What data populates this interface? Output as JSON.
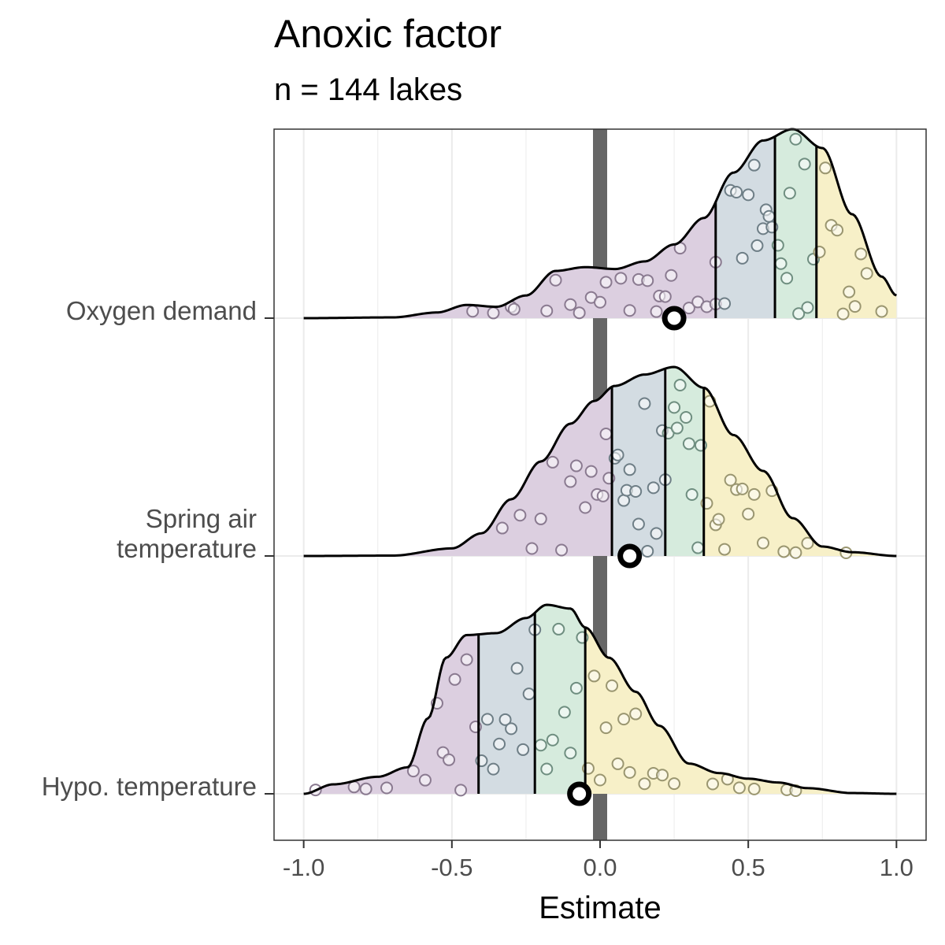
{
  "header": {
    "title": "Anoxic factor",
    "subtitle": "n = 144 lakes"
  },
  "colors": {
    "band_fills": [
      "#dccfe0",
      "#d3dce2",
      "#d6ebdd",
      "#f7f0c8"
    ],
    "point_strokes": [
      "#8a7a90",
      "#6e7e86",
      "#6f8e80",
      "#9a9670"
    ],
    "zero_line": "#666666",
    "grid": "#ebebeb",
    "frame": "#333333"
  },
  "chart_data": {
    "type": "ridgeline",
    "title": "Anoxic factor",
    "subtitle": "n = 144 lakes",
    "xlabel": "Estimate",
    "ylabel": "",
    "xlim": [
      -1.1,
      1.1
    ],
    "x_ticks": [
      -1.0,
      -0.5,
      0.0,
      0.5,
      1.0
    ],
    "x_tick_labels": [
      "-1.0",
      "-0.5",
      "0.0",
      "0.5",
      "1.0"
    ],
    "grid": true,
    "reference_line_x": 0,
    "categories": [
      {
        "label": "Oxygen demand",
        "label_lines": [
          "Oxygen demand"
        ],
        "quantile_lines": [
          0.39,
          0.59,
          0.73
        ],
        "mean": 0.25,
        "density": [
          [
            -1.0,
            0.0
          ],
          [
            -0.7,
            0.004
          ],
          [
            -0.55,
            0.03
          ],
          [
            -0.45,
            0.07
          ],
          [
            -0.35,
            0.06
          ],
          [
            -0.25,
            0.12
          ],
          [
            -0.15,
            0.25
          ],
          [
            -0.05,
            0.27
          ],
          [
            0.05,
            0.26
          ],
          [
            0.15,
            0.3
          ],
          [
            0.25,
            0.39
          ],
          [
            0.35,
            0.53
          ],
          [
            0.45,
            0.77
          ],
          [
            0.55,
            0.94
          ],
          [
            0.65,
            1.0
          ],
          [
            0.75,
            0.9
          ],
          [
            0.85,
            0.55
          ],
          [
            0.95,
            0.22
          ],
          [
            1.0,
            0.12
          ]
        ],
        "points": [
          -0.43,
          -0.36,
          -0.3,
          -0.29,
          -0.18,
          -0.15,
          -0.1,
          -0.07,
          -0.03,
          0.0,
          0.02,
          0.07,
          0.1,
          0.13,
          0.16,
          0.19,
          0.2,
          0.22,
          0.24,
          0.27,
          0.3,
          0.33,
          0.36,
          0.39,
          0.39,
          0.42,
          0.44,
          0.46,
          0.48,
          0.5,
          0.52,
          0.53,
          0.55,
          0.56,
          0.57,
          0.58,
          0.6,
          0.61,
          0.63,
          0.64,
          0.66,
          0.67,
          0.69,
          0.7,
          0.72,
          0.74,
          0.76,
          0.78,
          0.8,
          0.82,
          0.84,
          0.86,
          0.88,
          0.9,
          0.95
        ]
      },
      {
        "label": "Spring air temperature",
        "label_lines": [
          "Spring air",
          "temperature"
        ],
        "quantile_lines": [
          0.04,
          0.22,
          0.35
        ],
        "mean": 0.1,
        "density": [
          [
            -1.0,
            0.0
          ],
          [
            -0.7,
            0.002
          ],
          [
            -0.5,
            0.04
          ],
          [
            -0.4,
            0.12
          ],
          [
            -0.3,
            0.3
          ],
          [
            -0.2,
            0.5
          ],
          [
            -0.1,
            0.7
          ],
          [
            -0.02,
            0.82
          ],
          [
            0.05,
            0.9
          ],
          [
            0.15,
            0.96
          ],
          [
            0.25,
            1.0
          ],
          [
            0.35,
            0.89
          ],
          [
            0.45,
            0.64
          ],
          [
            0.55,
            0.45
          ],
          [
            0.65,
            0.2
          ],
          [
            0.75,
            0.05
          ],
          [
            0.85,
            0.02
          ],
          [
            1.0,
            0.0
          ]
        ],
        "points": [
          -0.33,
          -0.27,
          -0.23,
          -0.2,
          -0.16,
          -0.13,
          -0.1,
          -0.08,
          -0.05,
          -0.03,
          -0.01,
          0.01,
          0.02,
          0.03,
          0.05,
          0.06,
          0.08,
          0.09,
          0.1,
          0.12,
          0.13,
          0.15,
          0.16,
          0.18,
          0.19,
          0.21,
          0.22,
          0.23,
          0.25,
          0.26,
          0.27,
          0.29,
          0.3,
          0.31,
          0.33,
          0.34,
          0.36,
          0.37,
          0.39,
          0.4,
          0.42,
          0.44,
          0.46,
          0.48,
          0.5,
          0.52,
          0.55,
          0.58,
          0.62,
          0.66,
          0.7,
          0.83
        ]
      },
      {
        "label": "Hypo. temperature",
        "label_lines": [
          "Hypo. temperature"
        ],
        "quantile_lines": [
          -0.41,
          -0.22,
          -0.05
        ],
        "mean": -0.07,
        "density": [
          [
            -1.0,
            0.0
          ],
          [
            -0.9,
            0.05
          ],
          [
            -0.75,
            0.09
          ],
          [
            -0.65,
            0.14
          ],
          [
            -0.58,
            0.4
          ],
          [
            -0.52,
            0.72
          ],
          [
            -0.45,
            0.84
          ],
          [
            -0.35,
            0.85
          ],
          [
            -0.25,
            0.93
          ],
          [
            -0.18,
            1.0
          ],
          [
            -0.1,
            0.98
          ],
          [
            -0.05,
            0.88
          ],
          [
            0.03,
            0.72
          ],
          [
            0.12,
            0.54
          ],
          [
            0.2,
            0.36
          ],
          [
            0.3,
            0.16
          ],
          [
            0.4,
            0.11
          ],
          [
            0.5,
            0.08
          ],
          [
            0.6,
            0.06
          ],
          [
            0.7,
            0.03
          ],
          [
            0.85,
            0.004
          ],
          [
            1.0,
            0.0
          ]
        ],
        "points": [
          -0.96,
          -0.83,
          -0.79,
          -0.72,
          -0.63,
          -0.59,
          -0.55,
          -0.53,
          -0.51,
          -0.49,
          -0.47,
          -0.45,
          -0.42,
          -0.4,
          -0.38,
          -0.36,
          -0.34,
          -0.32,
          -0.3,
          -0.28,
          -0.26,
          -0.24,
          -0.22,
          -0.2,
          -0.18,
          -0.16,
          -0.14,
          -0.12,
          -0.1,
          -0.08,
          -0.06,
          -0.04,
          -0.02,
          0.0,
          0.02,
          0.04,
          0.06,
          0.08,
          0.1,
          0.12,
          0.15,
          0.18,
          0.21,
          0.25,
          0.38,
          0.43,
          0.47,
          0.52,
          0.63,
          0.66
        ]
      }
    ]
  }
}
